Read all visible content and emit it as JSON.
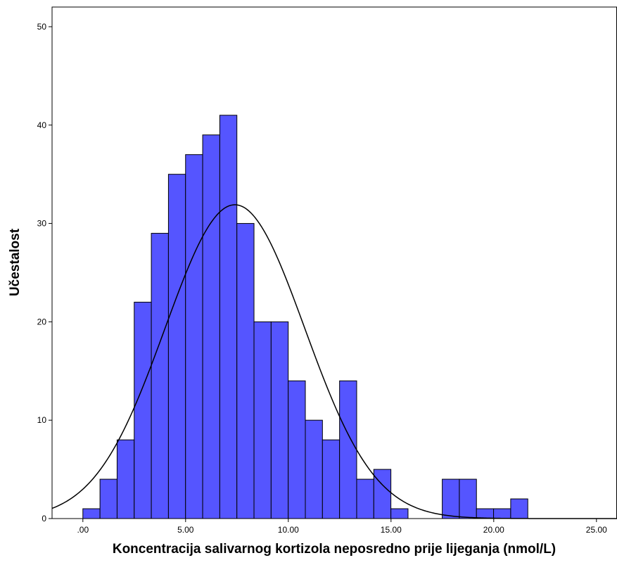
{
  "chart_data": {
    "type": "bar",
    "subtype": "histogram",
    "title": "",
    "xlabel": "Koncentracija salivarnog kortizola neposredno prije lijeganja (nmol/L)",
    "ylabel": "Učestalost",
    "xlim": [
      -1.5,
      26
    ],
    "ylim": [
      0,
      52
    ],
    "x_ticks": [
      0,
      5,
      10,
      15,
      20,
      25
    ],
    "x_tick_labels": [
      ".00",
      "5.00",
      "10.00",
      "15.00",
      "20.00",
      "25.00"
    ],
    "y_ticks": [
      0,
      10,
      20,
      30,
      40,
      50
    ],
    "y_tick_labels": [
      "0",
      "10",
      "20",
      "30",
      "40",
      "50"
    ],
    "bin_width": 0.833,
    "bin_start": 0,
    "counts": [
      1,
      4,
      8,
      22,
      29,
      35,
      37,
      39,
      41,
      30,
      20,
      20,
      14,
      10,
      8,
      14,
      4,
      5,
      1,
      0,
      0,
      4,
      4,
      1,
      1,
      2
    ],
    "bar_color": "#5555ff",
    "normal_curve": {
      "mean": 7.4,
      "sd": 3.4,
      "peak": 31.9,
      "color": "#000000"
    },
    "grid": false,
    "legend": "none"
  }
}
